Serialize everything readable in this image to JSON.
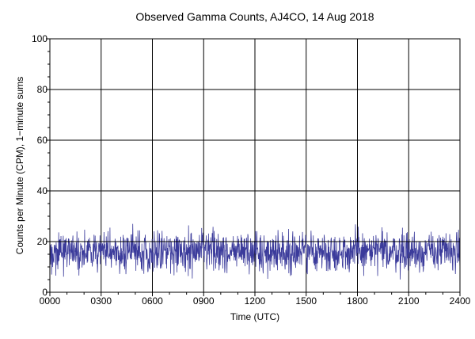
{
  "chart_data": {
    "type": "line",
    "title": "Observed Gamma Counts, AJ4CO, 14 Aug 2018",
    "xlabel": "Time (UTC)",
    "ylabel": "Counts per Minute (CPM), 1−minute sums",
    "x_tick_labels": [
      "0000",
      "0300",
      "0600",
      "0900",
      "1200",
      "1500",
      "1800",
      "2100",
      "2400"
    ],
    "y_tick_labels": [
      "0",
      "20",
      "40",
      "60",
      "80",
      "100"
    ],
    "xlim_minutes": [
      0,
      1440
    ],
    "ylim": [
      0,
      100
    ],
    "x_tick_minutes": [
      0,
      180,
      360,
      540,
      720,
      900,
      1080,
      1260,
      1440
    ],
    "y_ticks": [
      0,
      20,
      40,
      60,
      80,
      100
    ],
    "grid": true,
    "reference_line": 20,
    "series": [
      {
        "color": "#3b3b9b",
        "sample_interval_minutes": 1,
        "typical_mean": 16,
        "typical_range": [
          5,
          32
        ]
      }
    ]
  }
}
